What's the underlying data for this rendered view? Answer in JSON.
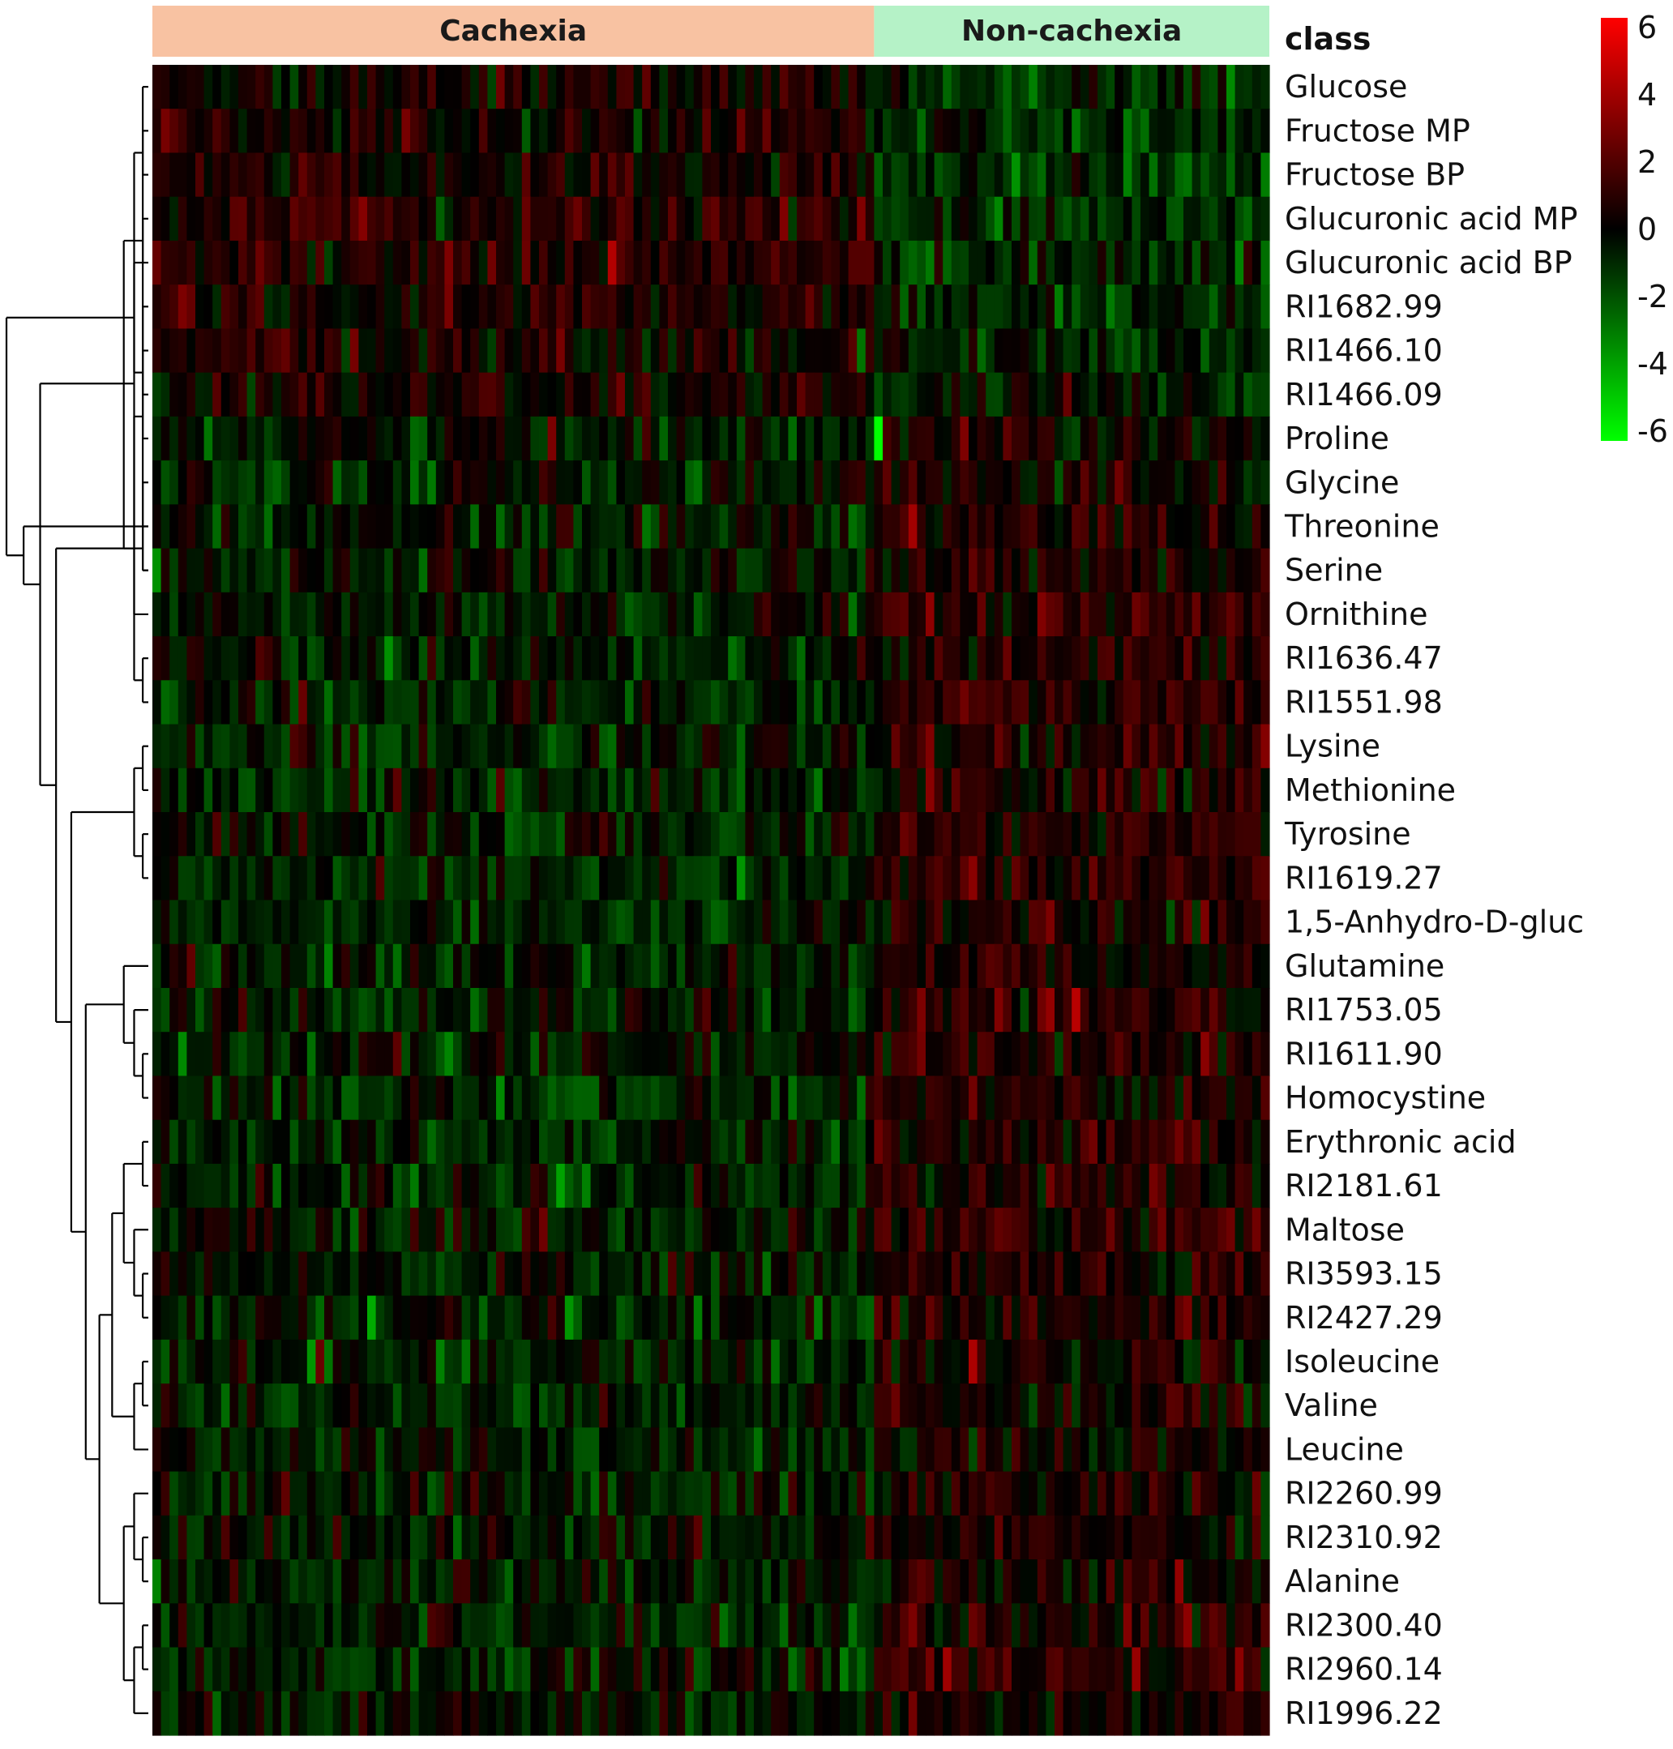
{
  "chart_data": {
    "type": "heatmap",
    "title": "",
    "class_header": "class",
    "groups": [
      {
        "name": "Cachexia",
        "color": "#F8C2A2",
        "n_samples": 84
      },
      {
        "name": "Non-cachexia",
        "color": "#B5F2C7",
        "n_samples": 46
      }
    ],
    "rows": [
      "Glucose",
      "Fructose MP",
      "Fructose BP",
      "Glucuronic acid MP",
      "Glucuronic acid BP",
      "RI1682.99",
      "RI1466.10",
      "RI1466.09",
      "Proline",
      "Glycine",
      "Threonine",
      "Serine",
      "Ornithine",
      "RI1636.47",
      "RI1551.98",
      "Lysine",
      "Methionine",
      "Tyrosine",
      "RI1619.27",
      "1,5-Anhydro-D-gluc",
      "Glutamine",
      "RI1753.05",
      "RI1611.90",
      "Homocystine",
      "Erythronic acid",
      "RI2181.61",
      "Maltose",
      "RI3593.15",
      "RI2427.29",
      "Isoleucine",
      "Valine",
      "Leucine",
      "RI2260.99",
      "RI2310.92",
      "Alanine",
      "RI2300.40",
      "RI2960.14",
      "RI1996.22"
    ],
    "row_group_bias": [
      [
        0.3,
        -0.6
      ],
      [
        0.4,
        -0.8
      ],
      [
        0.4,
        -0.8
      ],
      [
        0.6,
        -0.6
      ],
      [
        0.6,
        -0.6
      ],
      [
        0.4,
        -0.7
      ],
      [
        0.3,
        -0.5
      ],
      [
        0.3,
        -0.5
      ],
      [
        -0.2,
        0.4
      ],
      [
        -0.3,
        0.4
      ],
      [
        -0.3,
        0.4
      ],
      [
        -0.3,
        0.4
      ],
      [
        -0.4,
        0.5
      ],
      [
        -0.4,
        0.6
      ],
      [
        -0.4,
        0.6
      ],
      [
        -0.4,
        0.5
      ],
      [
        -0.4,
        0.6
      ],
      [
        -0.4,
        0.6
      ],
      [
        -0.4,
        0.6
      ],
      [
        -0.5,
        0.4
      ],
      [
        -0.4,
        0.5
      ],
      [
        -0.4,
        0.5
      ],
      [
        -0.4,
        0.6
      ],
      [
        -0.4,
        0.5
      ],
      [
        -0.5,
        0.7
      ],
      [
        -0.4,
        0.6
      ],
      [
        -0.4,
        0.6
      ],
      [
        -0.3,
        0.4
      ],
      [
        -0.4,
        0.5
      ],
      [
        -0.4,
        0.3
      ],
      [
        -0.4,
        0.4
      ],
      [
        -0.4,
        0.3
      ],
      [
        -0.3,
        0.4
      ],
      [
        -0.3,
        0.4
      ],
      [
        -0.3,
        0.5
      ],
      [
        -0.3,
        0.5
      ],
      [
        -0.3,
        0.6
      ],
      [
        -0.3,
        0.4
      ]
    ],
    "highlight_cells": [
      {
        "row": "Proline",
        "column": 84,
        "value": -6
      },
      {
        "row": "RI2427.29",
        "column": 25,
        "value": -4
      },
      {
        "row": "RI1619.27",
        "column": 68,
        "value": -3.5
      },
      {
        "row": "Isoleucine",
        "column": 18,
        "value": -3.5
      },
      {
        "row": "RI2960.14",
        "column": 114,
        "value": 3.5
      }
    ],
    "color_scale": {
      "min": -6,
      "max": 6,
      "low_color": "#00FF00",
      "mid_color": "#000000",
      "high_color": "#FF0000",
      "ticks": [
        "6",
        "4",
        "2",
        "0",
        "-2",
        "-4",
        "-6"
      ]
    },
    "dendrogram": {
      "side": "left",
      "merges": [
        [
          1,
          2
        ],
        [
          0,
          8
        ],
        [
          3,
          4
        ],
        [
          6,
          7
        ],
        [
          5,
          10
        ],
        [
          9,
          11
        ],
        [
          38,
          12
        ],
        [
          10,
          11
        ],
        [
          13,
          14
        ],
        [
          15,
          16
        ],
        [
          17,
          18
        ],
        [
          47,
          48
        ],
        [
          22,
          23
        ],
        [
          21,
          50
        ],
        [
          20,
          51
        ],
        [
          24,
          25
        ],
        [
          27,
          28
        ],
        [
          26,
          54
        ],
        [
          53,
          55
        ],
        [
          29,
          30
        ],
        [
          31,
          57
        ],
        [
          56,
          58
        ],
        [
          33,
          34
        ],
        [
          32,
          60
        ],
        [
          35,
          36
        ],
        [
          62,
          37
        ],
        [
          61,
          63
        ],
        [
          59,
          64
        ],
        [
          52,
          65
        ],
        [
          49,
          66
        ],
        [
          45,
          67
        ],
        [
          44,
          68
        ],
        [
          43,
          69
        ],
        [
          39,
          41
        ],
        [
          71,
          70
        ],
        [
          42,
          46
        ],
        [
          73,
          40
        ]
      ]
    }
  }
}
